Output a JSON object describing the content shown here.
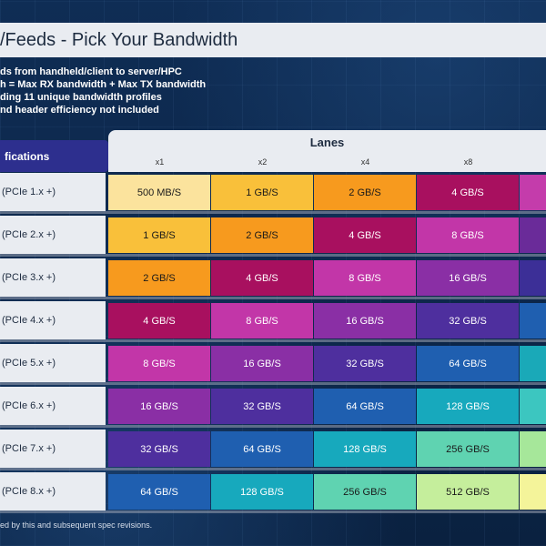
{
  "title": "/Feeds - Pick Your Bandwidth",
  "notes": [
    "ds from handheld/client to server/HPC",
    "h = Max RX bandwidth + Max TX bandwidth",
    "ding 11 unique bandwidth profiles",
    "nd header efficiency not included"
  ],
  "spec_header": "fications",
  "lanes_title": "Lanes",
  "lanes": [
    "x1",
    "x2",
    "x4",
    "x8"
  ],
  "rows": [
    {
      "label": "(PCIe 1.x +)",
      "cells": [
        "500 MB/S",
        "1 GB/S",
        "2 GB/S",
        "4 GB/S"
      ]
    },
    {
      "label": "(PCIe 2.x +)",
      "cells": [
        "1 GB/S",
        "2 GB/S",
        "4 GB/S",
        "8 GB/S"
      ]
    },
    {
      "label": "(PCIe 3.x +)",
      "cells": [
        "2 GB/S",
        "4 GB/S",
        "8 GB/S",
        "16 GB/S"
      ]
    },
    {
      "label": "(PCIe 4.x +)",
      "cells": [
        "4 GB/S",
        "8 GB/S",
        "16 GB/S",
        "32 GB/S"
      ]
    },
    {
      "label": "(PCIe 5.x +)",
      "cells": [
        "8 GB/S",
        "16 GB/S",
        "32 GB/S",
        "64 GB/S"
      ]
    },
    {
      "label": "(PCIe 6.x +)",
      "cells": [
        "16 GB/S",
        "32 GB/S",
        "64 GB/S",
        "128 GB/S"
      ]
    },
    {
      "label": "(PCIe 7.x +)",
      "cells": [
        "32 GB/S",
        "64 GB/S",
        "128 GB/S",
        "256 GB/S"
      ]
    },
    {
      "label": "(PCIe 8.x +)",
      "cells": [
        "64 GB/S",
        "128 GB/S",
        "256 GB/S",
        "512 GB/S"
      ]
    }
  ],
  "bandwidth_colors": {
    "500 MB/S": "#fbe39d",
    "1 GB/S": "#f9c03a",
    "2 GB/S": "#f79a1e",
    "4 GB/S": "#a8105f",
    "8 GB/S": "#c236a8",
    "16 GB/S": "#8a2fa5",
    "32 GB/S": "#4e2f9e",
    "64 GB/S": "#1f5fb0",
    "128 GB/S": "#17a9bd",
    "256 GB/S": "#5fd3b1",
    "512 GB/S": "#c5ee9c"
  },
  "edge_colors": [
    "#c43cab",
    "#6a2b99",
    "#3c2f97",
    "#1f5fb0",
    "#1aa9b8",
    "#3cc6c0",
    "#a6e79a",
    "#f4f49a"
  ],
  "footnote": "ed by this and subsequent spec revisions."
}
